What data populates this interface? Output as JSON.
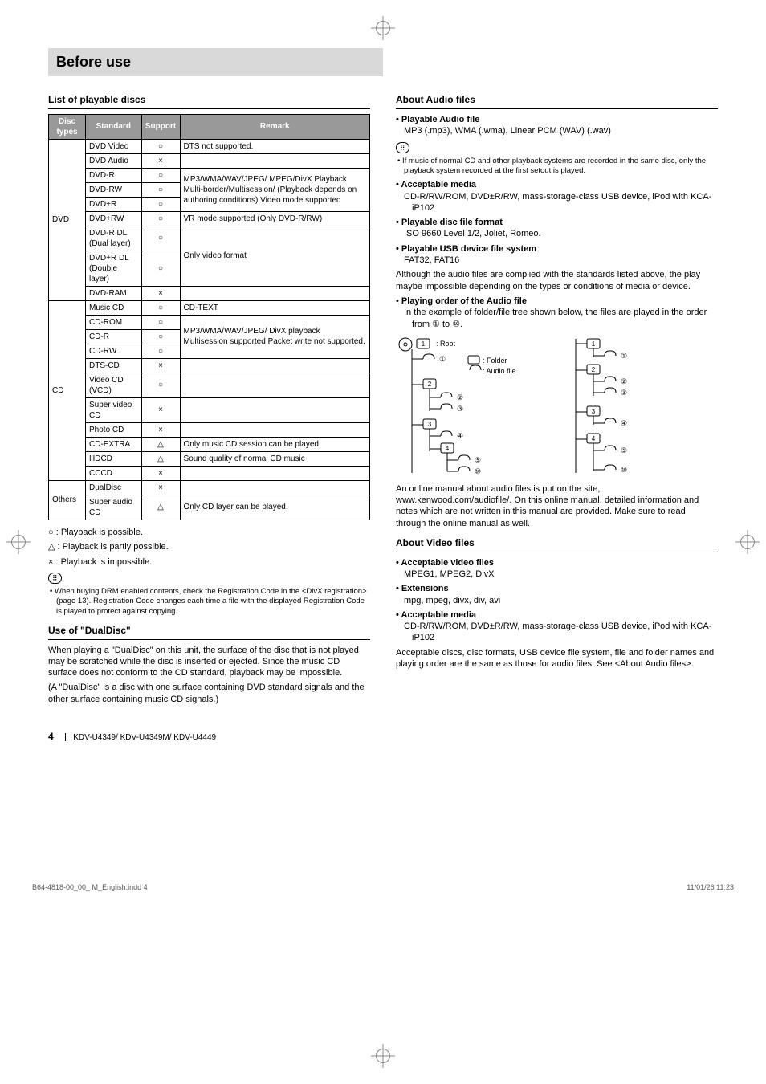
{
  "page_title": "Before use",
  "left": {
    "section_title": "List of playable discs",
    "table": {
      "headers": [
        "Disc types",
        "Standard",
        "Support",
        "Remark"
      ],
      "rows": [
        {
          "types": "DVD",
          "types_rowspan": 9,
          "standard": "DVD Video",
          "support": "○",
          "remark": "DTS not supported."
        },
        {
          "standard": "DVD Audio",
          "support": "×",
          "remark": ""
        },
        {
          "standard": "DVD-R",
          "support": "○",
          "remark": "MP3/WMA/WAV/JPEG/ MPEG/DivX Playback Multi-border/Multisession/ (Playback depends on authoring conditions) Video mode supported",
          "remark_rowspan": 3
        },
        {
          "standard": "DVD-RW",
          "support": "○"
        },
        {
          "standard": "DVD+R",
          "support": "○"
        },
        {
          "standard": "DVD+RW",
          "support": "○",
          "remark": "VR mode supported (Only DVD-R/RW)"
        },
        {
          "standard": "DVD-R DL (Dual layer)",
          "support": "○",
          "remark": "Only video format",
          "remark_rowspan": 2
        },
        {
          "standard": "DVD+R DL (Double layer)",
          "support": "○"
        },
        {
          "standard": "DVD-RAM",
          "support": "×",
          "remark": ""
        },
        {
          "types": "CD",
          "types_rowspan": 11,
          "standard": "Music CD",
          "support": "○",
          "remark": "CD-TEXT"
        },
        {
          "standard": "CD-ROM",
          "support": "○",
          "remark": "MP3/WMA/WAV/JPEG/ DivX playback Multisession supported Packet write not supported.",
          "remark_rowspan": 3
        },
        {
          "standard": "CD-R",
          "support": "○"
        },
        {
          "standard": "CD-RW",
          "support": "○"
        },
        {
          "standard": "DTS-CD",
          "support": "×",
          "remark": ""
        },
        {
          "standard": "Video CD (VCD)",
          "support": "○",
          "remark": ""
        },
        {
          "standard": "Super video CD",
          "support": "×",
          "remark": ""
        },
        {
          "standard": "Photo CD",
          "support": "×",
          "remark": ""
        },
        {
          "standard": "CD-EXTRA",
          "support": "△",
          "remark": "Only music CD session can be played."
        },
        {
          "standard": "HDCD",
          "support": "△",
          "remark": "Sound quality of normal CD music"
        },
        {
          "standard": "CCCD",
          "support": "×",
          "remark": ""
        },
        {
          "types": "Others",
          "types_rowspan": 2,
          "standard": "DualDisc",
          "support": "×",
          "remark": ""
        },
        {
          "standard": "Super audio CD",
          "support": "△",
          "remark": "Only CD layer can be played."
        }
      ]
    },
    "legend_lines": [
      "○ : Playback is possible.",
      "△ : Playback is partly possible.",
      "× : Playback is impossible."
    ],
    "note": "When buying DRM enabled contents, check the Registration Code in the <DivX registration> (page 13). Registration Code changes each time a file with the displayed Registration Code is played to protect against copying.",
    "dualdisc_title": "Use of  \"DualDisc\"",
    "dualdisc_p1": "When playing a \"DualDisc\" on this unit, the surface of the disc that is not played may be scratched while the disc is inserted or ejected. Since the music CD surface does not conform to the CD standard, playback may be impossible.",
    "dualdisc_p2": "(A \"DualDisc\" is a disc with one surface containing DVD standard signals and the other surface containing music CD signals.)"
  },
  "right": {
    "audio_title": "About Audio files",
    "audio_items": [
      {
        "label": "Playable Audio file",
        "text": "MP3 (.mp3), WMA (.wma), Linear PCM (WAV) (.wav)"
      }
    ],
    "audio_note": "If music of normal CD and other playback systems are recorded in the same disc, only the playback system recorded at the first setout is played.",
    "audio_items2": [
      {
        "label": "Acceptable media",
        "text": "CD-R/RW/ROM, DVD±R/RW, mass-storage-class USB device, iPod with KCA-iP102"
      },
      {
        "label": "Playable disc file format",
        "text": "ISO 9660 Level 1/2, Joliet, Romeo."
      },
      {
        "label": "Playable USB device file system",
        "text": "FAT32, FAT16"
      }
    ],
    "audio_para": "Although the audio files are complied with the standards listed above, the play maybe impossible depending on the types or conditions of media or device.",
    "play_order_label": "Playing order of the Audio file",
    "play_order_text": "In the example of folder/file tree shown below, the files are played in the order from ① to ⑩.",
    "tree_legend": {
      "root": ": Root",
      "folder": ": Folder",
      "audio": ": Audio file"
    },
    "online_manual": "An online manual about audio files is put on the site, www.kenwood.com/audiofile/. On this online manual, detailed information and notes which are not written in this manual are provided. Make sure to read through the online manual as well.",
    "video_title": "About Video files",
    "video_items": [
      {
        "label": "Acceptable video files",
        "text": "MPEG1, MPEG2, DivX"
      },
      {
        "label": "Extensions",
        "text": "mpg, mpeg, divx, div, avi"
      },
      {
        "label": "Acceptable media",
        "text": "CD-R/RW/ROM, DVD±R/RW, mass-storage-class USB device, iPod with KCA-iP102"
      }
    ],
    "video_para": "Acceptable discs, disc formats, USB device file system, file and folder names and playing order are the same as those for audio files. See <About Audio files>."
  },
  "footer_models": "KDV-U4349/ KDV-U4349M/ KDV-U4449",
  "footer_page": "4",
  "outer_footer_left": "B64-4818-00_00_ M_English.indd   4",
  "outer_footer_right": "11/01/26   11:23"
}
